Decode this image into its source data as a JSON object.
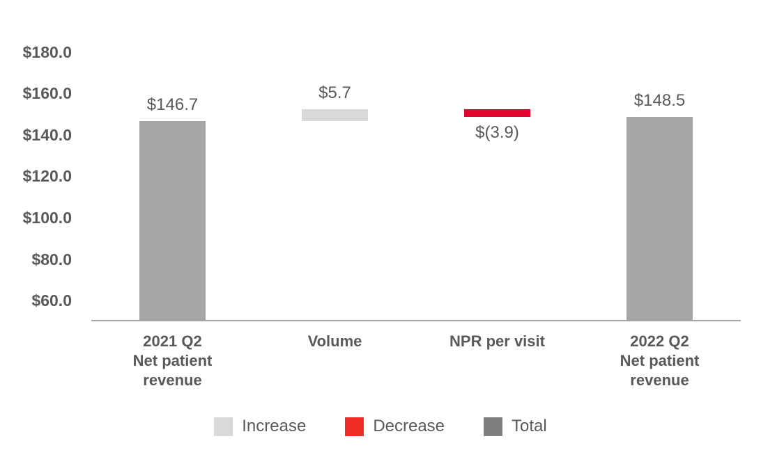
{
  "chart_data": {
    "type": "waterfall",
    "title": "",
    "columns": [
      {
        "category": "2021 Q2 Net patient revenue",
        "category_lines": [
          "2021 Q2",
          "Net patient",
          "revenue"
        ],
        "role": "total",
        "start": 0,
        "end": 146.7,
        "value": 146.7,
        "data_label": "$146.7",
        "data_label_position": "above"
      },
      {
        "category": "Volume",
        "category_lines": [
          "Volume"
        ],
        "role": "increase",
        "start": 146.7,
        "end": 152.4,
        "value": 5.7,
        "data_label": "$5.7",
        "data_label_position": "above"
      },
      {
        "category": "NPR per visit",
        "category_lines": [
          "NPR per visit"
        ],
        "role": "decrease",
        "start": 152.4,
        "end": 148.5,
        "value": -3.9,
        "data_label": "$(3.9)",
        "data_label_position": "below"
      },
      {
        "category": "2022 Q2 Net patient revenue",
        "category_lines": [
          "2022 Q2",
          "Net patient",
          "revenue"
        ],
        "role": "total",
        "start": 0,
        "end": 148.5,
        "value": 148.5,
        "data_label": "$148.5",
        "data_label_position": "above"
      }
    ],
    "y_axis": {
      "tick_labels": [
        "$180.0",
        "$160.0",
        "$140.0",
        "$120.0",
        "$100.0",
        "$80.0",
        "$60.0"
      ],
      "tick_values": [
        180,
        160,
        140,
        120,
        100,
        80,
        60
      ],
      "min": 50,
      "max": 185,
      "gridlines": false
    },
    "legend": {
      "position": "bottom",
      "items": [
        {
          "label": "Increase",
          "color": "#d9d9d9"
        },
        {
          "label": "Decrease",
          "color": "#ee2e24"
        },
        {
          "label": "Total",
          "color": "#7f7f7f"
        }
      ]
    },
    "colors": {
      "total_bar": "#a6a6a6",
      "increase_bar": "#d9d9d9",
      "decrease_bar": "#e4042c",
      "axis_line": "#a6a6a6",
      "text": "#595959"
    }
  }
}
